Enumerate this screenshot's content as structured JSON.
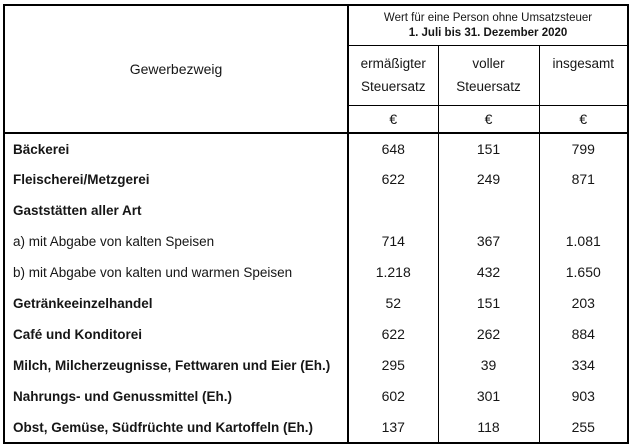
{
  "table": {
    "corner_header": "Gewerbezweig",
    "value_group_header": {
      "line1": "Wert für eine Person ohne Umsatzsteuer",
      "line2": "1. Juli bis 31. Dezember 2020"
    },
    "value_columns": [
      {
        "label_line1": "ermäßigter",
        "label_line2": "Steuersatz"
      },
      {
        "label_line1": "voller",
        "label_line2": "Steuersatz"
      },
      {
        "label_line1": "insgesamt",
        "label_line2": ""
      }
    ],
    "unit_row": [
      "€",
      "€",
      "€"
    ],
    "rows": [
      {
        "label": "Bäckerei",
        "bold": true,
        "values": [
          "648",
          "151",
          "799"
        ]
      },
      {
        "label": "Fleischerei/Metzgerei",
        "bold": true,
        "values": [
          "622",
          "249",
          "871"
        ]
      },
      {
        "label": "Gaststätten aller Art",
        "bold": true,
        "values": [
          "",
          "",
          ""
        ]
      },
      {
        "label": "a) mit Abgabe von kalten Speisen",
        "bold": false,
        "values": [
          "714",
          "367",
          "1.081"
        ]
      },
      {
        "label": "b) mit Abgabe von kalten und warmen Speisen",
        "bold": false,
        "values": [
          "1.218",
          "432",
          "1.650"
        ]
      },
      {
        "label": "Getränkeeinzelhandel",
        "bold": true,
        "values": [
          "52",
          "151",
          "203"
        ]
      },
      {
        "label": "Café und Konditorei",
        "bold": true,
        "values": [
          "622",
          "262",
          "884"
        ]
      },
      {
        "label": "Milch, Milcherzeugnisse, Fettwaren und Eier (Eh.)",
        "bold": true,
        "values": [
          "295",
          "39",
          "334"
        ]
      },
      {
        "label": "Nahrungs- und Genussmittel (Eh.)",
        "bold": true,
        "values": [
          "602",
          "301",
          "903"
        ]
      },
      {
        "label": "Obst, Gemüse, Südfrüchte und Kartoffeln (Eh.)",
        "bold": true,
        "values": [
          "137",
          "118",
          "255"
        ]
      }
    ],
    "colors": {
      "border": "#000000",
      "text": "#161616",
      "background": "#ffffff"
    }
  }
}
